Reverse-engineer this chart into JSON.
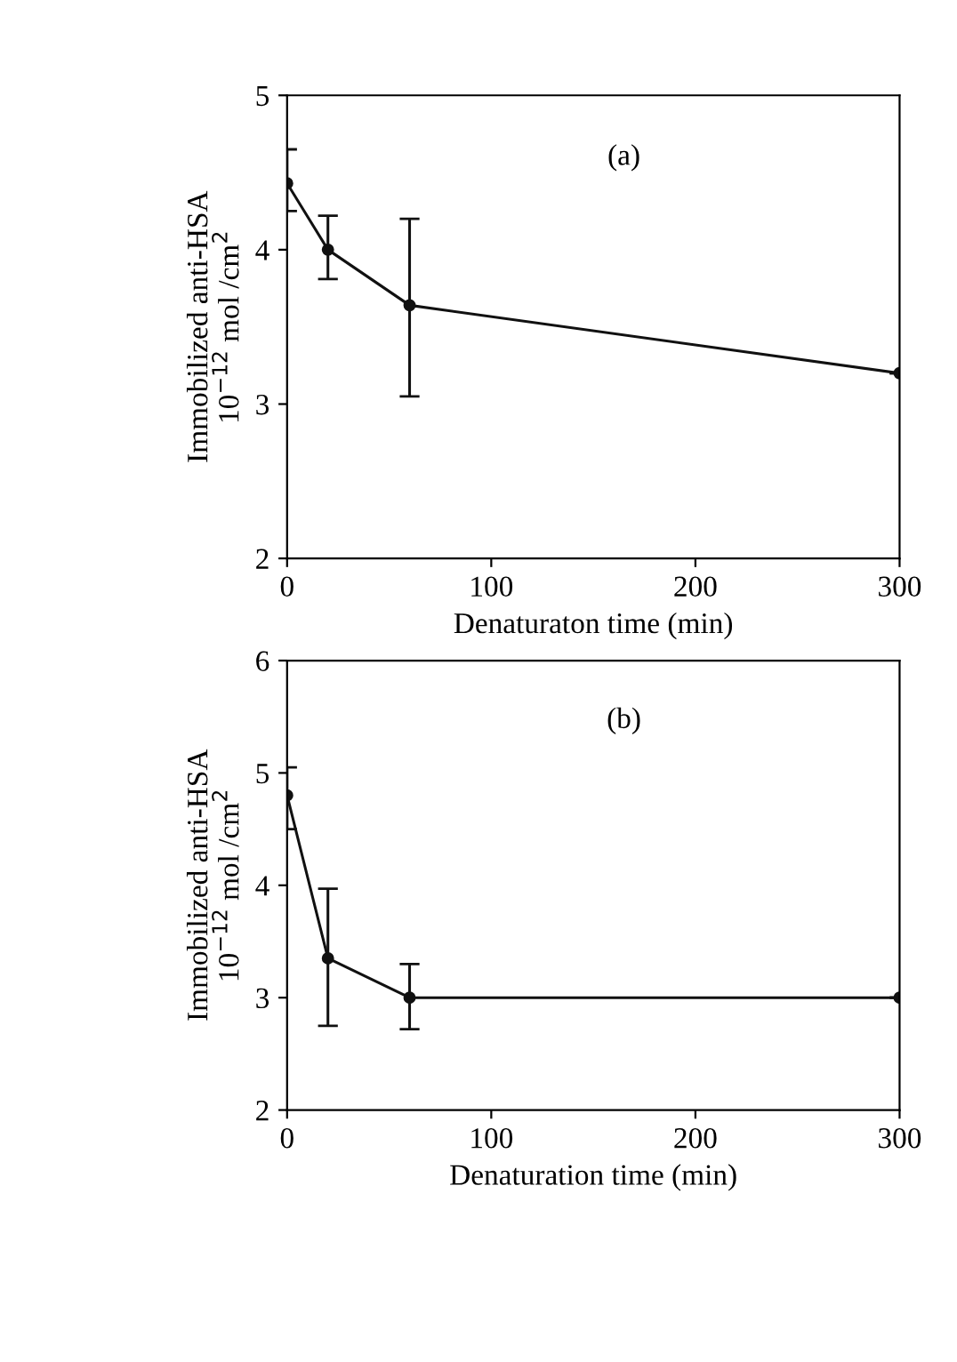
{
  "chart_data": [
    {
      "type": "line",
      "xlabel": "Denaturaton time (min)",
      "ylabel": "Immobilized anti-HSA\n10$^{−12}$ mol /cm$^{2}$",
      "annotations": [
        "(a)"
      ],
      "x": [
        0,
        20,
        60,
        300
      ],
      "xlim": [
        0,
        300
      ],
      "xticks": [
        0,
        100,
        200,
        300
      ],
      "ylim": [
        2,
        5
      ],
      "yticks": [
        2,
        3,
        4,
        5
      ],
      "marker": "circle",
      "grid": false,
      "legend": false,
      "series": [
        {
          "color": "#111111",
          "values": [
            4.43,
            4.0,
            3.64,
            3.2
          ],
          "errors": [
            [
              4.25,
              4.65
            ],
            [
              3.81,
              4.22
            ],
            [
              3.05,
              4.2
            ],
            null
          ]
        }
      ]
    },
    {
      "type": "line",
      "xlabel": "Denaturation time (min)",
      "ylabel": "Immobilized anti-HSA\n10$^{−12}$ mol /cm$^{2}$",
      "annotations": [
        "(b)"
      ],
      "x": [
        0,
        20,
        60,
        300
      ],
      "xlim": [
        0,
        300
      ],
      "xticks": [
        0,
        100,
        200,
        300
      ],
      "ylim": [
        2,
        6
      ],
      "yticks": [
        2,
        3,
        4,
        5,
        6
      ],
      "marker": "circle",
      "grid": false,
      "legend": false,
      "series": [
        {
          "color": "#111111",
          "values": [
            4.8,
            3.35,
            3.0,
            3.0
          ],
          "errors": [
            [
              4.5,
              5.05
            ],
            [
              2.75,
              3.97
            ],
            [
              2.72,
              3.3
            ],
            null
          ]
        }
      ]
    }
  ]
}
